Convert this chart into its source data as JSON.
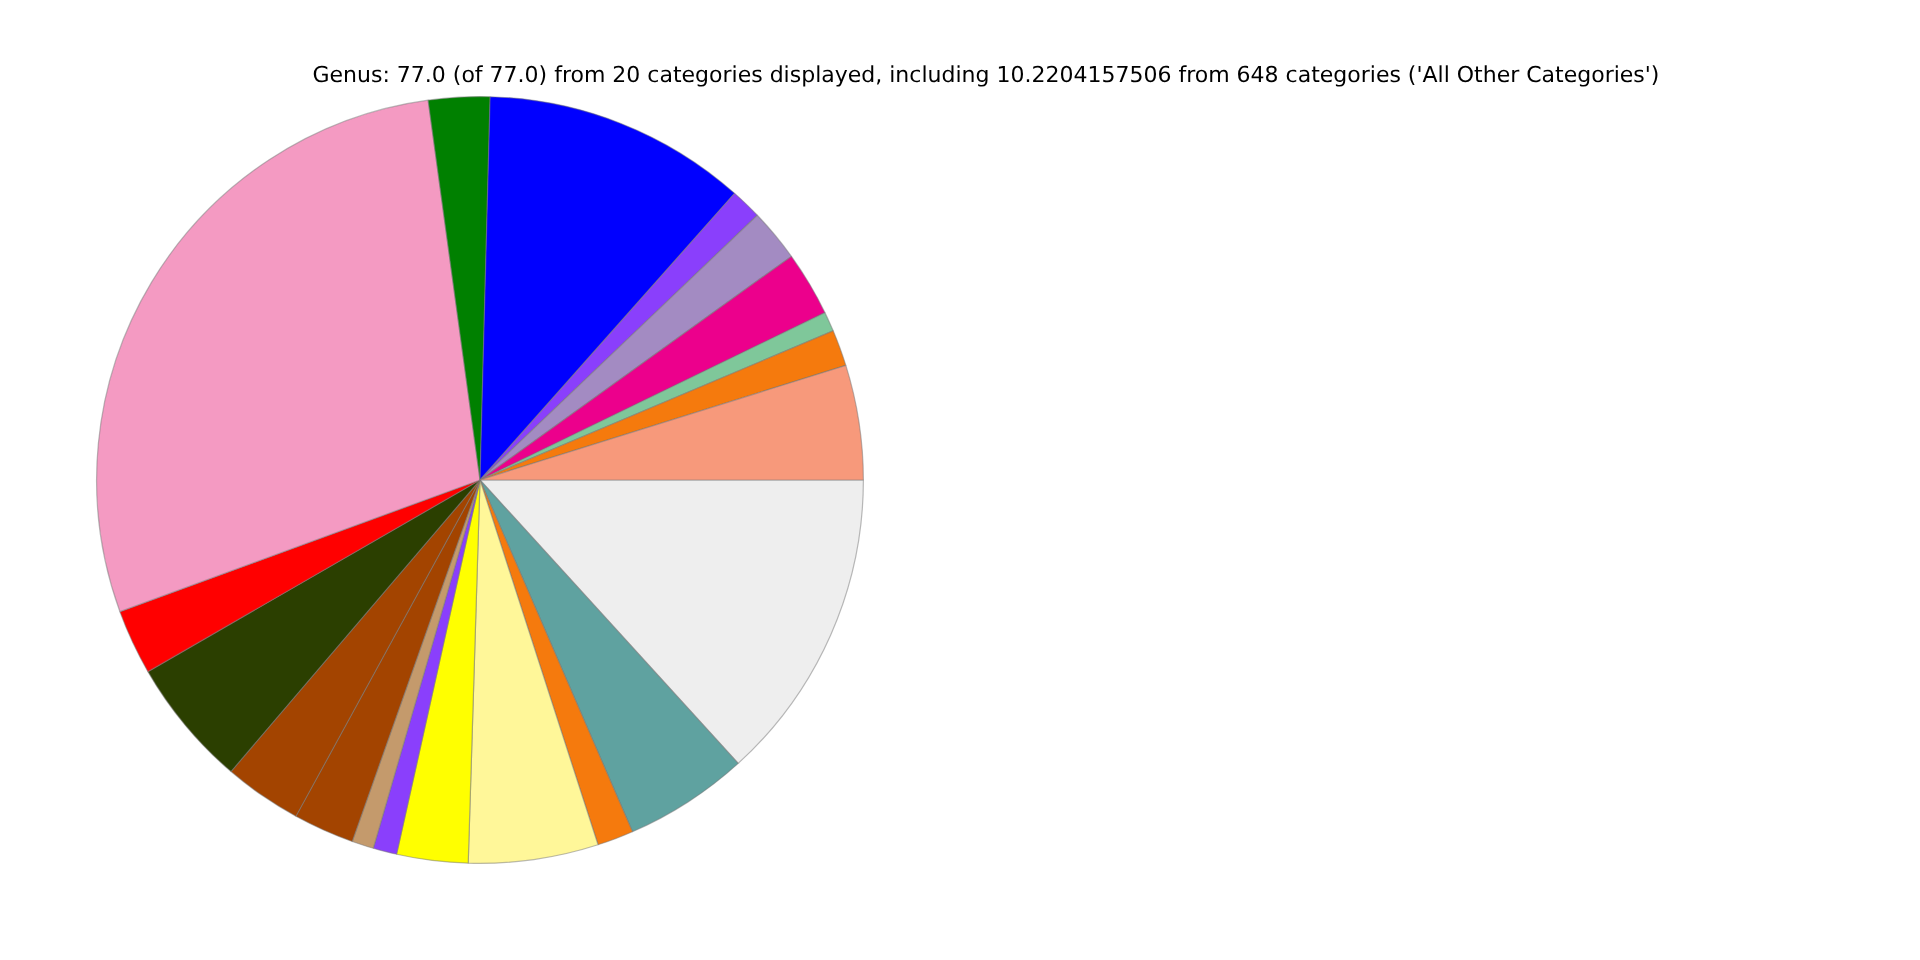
{
  "chart_data": {
    "type": "pie",
    "title": "Genus: 77.0 (of 77.0) from 20 categories displayed, including 10.2204157506 from 648 categories ('All Other Categories')",
    "categories": [
      null,
      null,
      null,
      null,
      null,
      null,
      null,
      null,
      null,
      null,
      null,
      null,
      null,
      null,
      null,
      null,
      null,
      null,
      null,
      null
    ],
    "values": [
      4.83,
      1.53,
      0.83,
      2.72,
      2.22,
      1.31,
      11.14,
      2.58,
      28.42,
      2.75,
      5.42,
      3.28,
      2.56,
      0.92,
      1.0,
      3.0,
      5.47,
      1.53,
      5.25,
      13.24
    ],
    "colors": [
      "#f7997b",
      "#f57a0d",
      "#7fc79a",
      "#ec008c",
      "#a38bc2",
      "#8a3ffc",
      "#0000ff",
      "#008000",
      "#f49ac2",
      "#ff0000",
      "#2b3f00",
      "#a34400",
      "#a34400",
      "#c49a6c",
      "#8a3ffc",
      "#ffff00",
      "#fff799",
      "#f57a0d",
      "#5fa2a0",
      "#eeeeee"
    ],
    "legend": false
  }
}
